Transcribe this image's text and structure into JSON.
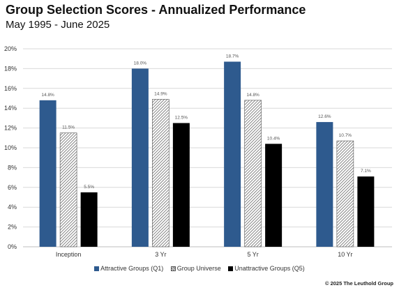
{
  "header": {
    "title": "Group Selection Scores - Annualized Performance",
    "subtitle": "May 1995 - June 2025"
  },
  "footer": {
    "copyright": "© 2025 The Leuthold Group"
  },
  "colors": {
    "attractive": "#2e5a8e",
    "universe_pattern": "#666666",
    "unattractive": "#000000",
    "grid": "#d9d9d9",
    "axis_text": "#333333",
    "value_label": "#555555"
  },
  "chart_data": {
    "type": "bar",
    "title": "Group Selection Scores - Annualized Performance",
    "subtitle": "May 1995 - June 2025",
    "categories": [
      "Inception",
      "3 Yr",
      "5 Yr",
      "10 Yr"
    ],
    "series": [
      {
        "name": "Attractive Groups (Q1)",
        "values": [
          14.8,
          18.0,
          18.7,
          12.6
        ],
        "labels": [
          "14.8%",
          "18.0%",
          "18.7%",
          "12.6%"
        ]
      },
      {
        "name": "Group Universe",
        "values": [
          11.5,
          14.9,
          14.8,
          10.7
        ],
        "labels": [
          "11.5%",
          "14.9%",
          "14.8%",
          "10.7%"
        ]
      },
      {
        "name": "Unattractive Groups (Q5)",
        "values": [
          5.5,
          12.5,
          10.4,
          7.1
        ],
        "labels": [
          "5.5%",
          "12.5%",
          "10.4%",
          "7.1%"
        ]
      }
    ],
    "ylim": [
      0,
      20
    ],
    "yticks": [
      "0%",
      "2%",
      "4%",
      "6%",
      "8%",
      "10%",
      "12%",
      "14%",
      "16%",
      "18%",
      "20%"
    ],
    "grid": true,
    "legend_position": "bottom"
  }
}
